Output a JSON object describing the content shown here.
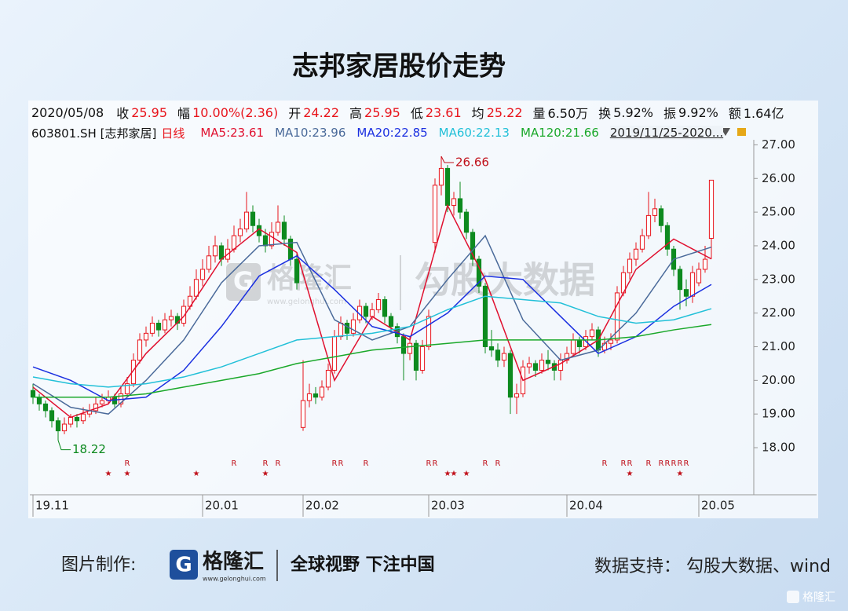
{
  "title": "志邦家居股价走势",
  "info_row": [
    {
      "label": "2020/05/08",
      "color": "#111"
    },
    {
      "label": "收",
      "value": "25.95",
      "color": "#e8141c"
    },
    {
      "label": "幅",
      "value": "10.00%(2.36)",
      "color": "#e8141c"
    },
    {
      "label": "开",
      "value": "24.22",
      "color": "#e8141c"
    },
    {
      "label": "高",
      "value": "25.95",
      "color": "#e8141c"
    },
    {
      "label": "低",
      "value": "23.61",
      "color": "#e8141c"
    },
    {
      "label": "均",
      "value": "25.22",
      "color": "#e8141c"
    },
    {
      "label": "量",
      "value": "6.50万",
      "color": "#111"
    },
    {
      "label": "换",
      "value": "5.92%",
      "color": "#111"
    },
    {
      "label": "振",
      "value": "9.92%",
      "color": "#111"
    },
    {
      "label": "额",
      "value": "1.64亿",
      "color": "#111"
    }
  ],
  "legend_row": [
    {
      "text": "603801.SH [志邦家居]",
      "color": "#111"
    },
    {
      "text": "日线",
      "color": "#e8141c"
    }
  ],
  "range_text": "2019/11/25-2020...",
  "watermark": {
    "logo_text": "格隆汇",
    "url": "www.gelonghui.com",
    "right_text": "勾股大数据"
  },
  "footer": {
    "made_by": "图片制作:",
    "logo_text": "格隆汇",
    "url": "www.gelonghui.com",
    "slogan": "全球视野 下注中国",
    "source": "数据支持： 勾股大数据、wind",
    "corner": "格隆汇"
  },
  "chart_data": {
    "type": "candlestick",
    "up_color": "#e8141c",
    "down_color": "#0d8a1f",
    "xlim": [
      -0.25,
      114.75
    ],
    "xticks": [
      {
        "value": 0,
        "label": "19.11"
      },
      {
        "value": 27,
        "label": "20.01"
      },
      {
        "value": 43,
        "label": "20.02"
      },
      {
        "value": 63,
        "label": "20.03"
      },
      {
        "value": 85,
        "label": "20.04"
      },
      {
        "value": 106,
        "label": "20.05"
      }
    ],
    "ylim": [
      16.6,
      27.15
    ],
    "yticks": [
      {
        "value": 18,
        "label": "18.00"
      },
      {
        "value": 19,
        "label": "19.00"
      },
      {
        "value": 20,
        "label": "20.00"
      },
      {
        "value": 21,
        "label": "21.00"
      },
      {
        "value": 22,
        "label": "22.00"
      },
      {
        "value": 23,
        "label": "23.00"
      },
      {
        "value": 24,
        "label": "24.00"
      },
      {
        "value": 25,
        "label": "25.00"
      },
      {
        "value": 26,
        "label": "26.00"
      },
      {
        "value": 27,
        "label": "27.00"
      }
    ],
    "candles": [
      [
        19.7,
        19.9,
        19.3,
        19.5
      ],
      [
        19.5,
        19.6,
        19.1,
        19.3
      ],
      [
        19.3,
        19.4,
        18.9,
        19.1
      ],
      [
        19.1,
        19.2,
        18.6,
        18.8
      ],
      [
        18.8,
        18.9,
        18.22,
        18.5
      ],
      [
        18.5,
        18.9,
        18.4,
        18.7
      ],
      [
        18.7,
        19.0,
        18.6,
        18.9
      ],
      [
        18.9,
        19.0,
        18.6,
        18.8
      ],
      [
        18.8,
        19.2,
        18.7,
        19.0
      ],
      [
        19.0,
        19.3,
        18.9,
        19.1
      ],
      [
        19.1,
        19.5,
        19.0,
        19.3
      ],
      [
        19.3,
        19.6,
        19.2,
        19.4
      ],
      [
        19.4,
        19.7,
        19.3,
        19.5
      ],
      [
        19.5,
        19.6,
        19.2,
        19.3
      ],
      [
        19.3,
        19.8,
        19.2,
        19.6
      ],
      [
        19.6,
        20.1,
        19.5,
        19.9
      ],
      [
        19.9,
        20.8,
        19.8,
        20.6
      ],
      [
        20.6,
        21.4,
        20.5,
        21.2
      ],
      [
        21.2,
        21.6,
        21.0,
        21.4
      ],
      [
        21.4,
        21.9,
        21.3,
        21.7
      ],
      [
        21.7,
        21.8,
        21.3,
        21.5
      ],
      [
        21.5,
        22.0,
        21.4,
        21.8
      ],
      [
        21.8,
        22.1,
        21.6,
        21.9
      ],
      [
        21.9,
        22.0,
        21.5,
        21.7
      ],
      [
        21.7,
        22.4,
        21.6,
        22.2
      ],
      [
        22.2,
        22.8,
        22.1,
        22.5
      ],
      [
        22.5,
        23.3,
        22.4,
        23.0
      ],
      [
        23.0,
        23.6,
        22.8,
        23.3
      ],
      [
        23.3,
        24.0,
        23.2,
        23.7
      ],
      [
        23.7,
        24.3,
        23.5,
        24.0
      ],
      [
        24.0,
        24.1,
        23.4,
        23.6
      ],
      [
        23.6,
        24.2,
        23.5,
        23.9
      ],
      [
        23.9,
        24.6,
        23.8,
        24.3
      ],
      [
        24.3,
        24.8,
        24.1,
        24.5
      ],
      [
        24.5,
        25.6,
        24.4,
        25.0
      ],
      [
        25.0,
        25.2,
        24.4,
        24.6
      ],
      [
        24.6,
        24.8,
        24.1,
        24.3
      ],
      [
        24.3,
        24.5,
        23.8,
        24.0
      ],
      [
        24.0,
        24.7,
        23.9,
        24.4
      ],
      [
        24.4,
        25.2,
        24.3,
        24.7
      ],
      [
        24.7,
        24.9,
        24.0,
        24.2
      ],
      [
        24.2,
        24.3,
        23.4,
        23.6
      ],
      [
        23.6,
        23.8,
        22.7,
        22.9
      ],
      [
        18.6,
        20.6,
        18.5,
        19.4
      ],
      [
        19.4,
        19.9,
        19.2,
        19.6
      ],
      [
        19.6,
        19.8,
        19.3,
        19.5
      ],
      [
        19.5,
        20.0,
        19.4,
        19.8
      ],
      [
        19.8,
        20.5,
        19.7,
        20.3
      ],
      [
        20.3,
        21.5,
        20.2,
        21.3
      ],
      [
        21.3,
        21.9,
        21.2,
        21.7
      ],
      [
        21.7,
        21.8,
        21.2,
        21.4
      ],
      [
        21.4,
        22.0,
        21.3,
        21.8
      ],
      [
        21.8,
        22.4,
        21.7,
        22.2
      ],
      [
        22.2,
        22.3,
        21.7,
        21.9
      ],
      [
        21.9,
        22.3,
        21.8,
        22.1
      ],
      [
        22.1,
        22.6,
        22.0,
        22.4
      ],
      [
        22.4,
        22.5,
        21.7,
        21.9
      ],
      [
        21.9,
        22.0,
        21.4,
        21.6
      ],
      [
        21.6,
        21.7,
        21.1,
        21.3
      ],
      [
        21.3,
        21.4,
        20.0,
        20.8
      ],
      [
        20.8,
        21.3,
        20.6,
        21.1
      ],
      [
        21.1,
        21.2,
        20.0,
        20.3
      ],
      [
        20.3,
        21.2,
        20.2,
        21.0
      ],
      [
        21.0,
        22.1,
        20.9,
        21.9
      ],
      [
        24.1,
        26.0,
        23.8,
        25.8
      ],
      [
        25.8,
        26.66,
        25.5,
        26.3
      ],
      [
        26.3,
        26.4,
        25.0,
        25.2
      ],
      [
        25.2,
        25.6,
        24.9,
        25.4
      ],
      [
        25.4,
        25.9,
        24.8,
        25.0
      ],
      [
        25.0,
        25.1,
        24.2,
        24.4
      ],
      [
        24.4,
        24.5,
        23.4,
        23.6
      ],
      [
        23.6,
        23.7,
        22.6,
        22.8
      ],
      [
        22.8,
        22.9,
        20.8,
        21.0
      ],
      [
        21.0,
        21.5,
        20.7,
        20.9
      ],
      [
        20.9,
        21.1,
        20.4,
        20.6
      ],
      [
        20.6,
        21.0,
        20.4,
        20.8
      ],
      [
        20.8,
        20.9,
        19.0,
        19.5
      ],
      [
        19.5,
        19.9,
        19.0,
        19.6
      ],
      [
        19.6,
        20.6,
        19.5,
        20.4
      ],
      [
        20.4,
        20.7,
        20.2,
        20.5
      ],
      [
        20.5,
        20.6,
        20.1,
        20.3
      ],
      [
        20.3,
        20.8,
        20.2,
        20.6
      ],
      [
        20.6,
        20.9,
        20.3,
        20.5
      ],
      [
        20.5,
        20.6,
        20.0,
        20.3
      ],
      [
        20.3,
        20.8,
        20.0,
        20.6
      ],
      [
        20.6,
        21.0,
        20.5,
        20.8
      ],
      [
        20.8,
        21.4,
        20.7,
        21.2
      ],
      [
        21.2,
        21.3,
        20.8,
        21.0
      ],
      [
        21.0,
        21.5,
        20.9,
        21.3
      ],
      [
        21.3,
        21.7,
        21.2,
        21.5
      ],
      [
        21.5,
        21.6,
        20.7,
        20.9
      ],
      [
        20.9,
        21.3,
        20.8,
        21.1
      ],
      [
        21.1,
        21.4,
        20.9,
        21.2
      ],
      [
        21.2,
        22.8,
        21.1,
        22.6
      ],
      [
        22.6,
        23.4,
        22.5,
        23.2
      ],
      [
        23.2,
        23.8,
        23.0,
        23.6
      ],
      [
        23.6,
        24.1,
        23.4,
        23.9
      ],
      [
        23.9,
        24.5,
        23.8,
        24.3
      ],
      [
        24.3,
        25.6,
        24.2,
        24.9
      ],
      [
        24.9,
        25.4,
        24.7,
        25.1
      ],
      [
        25.1,
        25.2,
        24.4,
        24.6
      ],
      [
        24.6,
        24.7,
        23.7,
        23.9
      ],
      [
        23.9,
        24.0,
        23.1,
        23.3
      ],
      [
        23.3,
        23.4,
        22.1,
        22.7
      ],
      [
        22.7,
        23.0,
        22.2,
        22.5
      ],
      [
        22.5,
        23.4,
        22.3,
        23.2
      ],
      [
        22.9,
        23.5,
        22.8,
        23.3
      ],
      [
        23.3,
        24.0,
        23.2,
        23.6
      ],
      [
        24.22,
        25.95,
        23.61,
        25.95
      ]
    ],
    "ma_x": [
      0,
      6,
      12,
      18,
      24,
      30,
      36,
      42,
      48,
      54,
      60,
      66,
      72,
      78,
      84,
      90,
      96,
      102,
      108
    ],
    "series": [
      {
        "legend": "MA5:23.61",
        "color": "#e0102f",
        "values": [
          19.8,
          18.9,
          19.3,
          20.8,
          21.9,
          23.6,
          24.5,
          23.8,
          20.0,
          21.9,
          21.2,
          25.2,
          23.0,
          20.0,
          20.5,
          21.2,
          23.3,
          24.2,
          23.61
        ]
      },
      {
        "legend": "MA10:23.96",
        "color": "#4a6a9a",
        "values": [
          19.9,
          19.2,
          19.0,
          20.0,
          21.2,
          22.9,
          24.0,
          24.1,
          21.8,
          21.2,
          21.6,
          23.0,
          24.3,
          21.8,
          20.6,
          20.9,
          22.0,
          23.6,
          23.96
        ]
      },
      {
        "legend": "MA20:22.85",
        "color": "#1a2fe0",
        "values": [
          20.4,
          20.0,
          19.4,
          19.5,
          20.3,
          21.6,
          23.1,
          23.7,
          22.7,
          21.6,
          21.3,
          22.0,
          23.1,
          23.0,
          21.9,
          20.8,
          21.3,
          22.2,
          22.85
        ]
      },
      {
        "legend": "MA60:22.13",
        "color": "#22c0d8",
        "values": [
          20.1,
          19.9,
          19.8,
          19.9,
          20.1,
          20.4,
          20.8,
          21.2,
          21.3,
          21.4,
          21.6,
          22.1,
          22.5,
          22.4,
          22.3,
          21.9,
          21.7,
          21.8,
          22.13
        ]
      },
      {
        "legend": "MA120:21.66",
        "color": "#1aa82a",
        "values": [
          19.5,
          19.5,
          19.5,
          19.6,
          19.8,
          20.0,
          20.2,
          20.5,
          20.7,
          20.9,
          21.0,
          21.1,
          21.2,
          21.2,
          21.2,
          21.2,
          21.3,
          21.5,
          21.66
        ]
      }
    ],
    "annotations": [
      {
        "value": 26.66,
        "index": 65,
        "color": "#c0101a"
      },
      {
        "value": 18.22,
        "index": 4,
        "color": "#0d8a1f"
      }
    ],
    "signals": {
      "r_label": "R",
      "r_color": "#c0101a",
      "r_index": [
        15,
        32,
        37,
        39,
        48,
        49,
        53,
        63,
        64,
        72,
        74,
        91,
        94,
        95,
        98,
        100,
        101,
        102,
        103,
        104
      ],
      "star_label": "★",
      "star_color": "#c0101a",
      "star_index": [
        12,
        15,
        26,
        37,
        66,
        67,
        69,
        95,
        103
      ]
    }
  }
}
